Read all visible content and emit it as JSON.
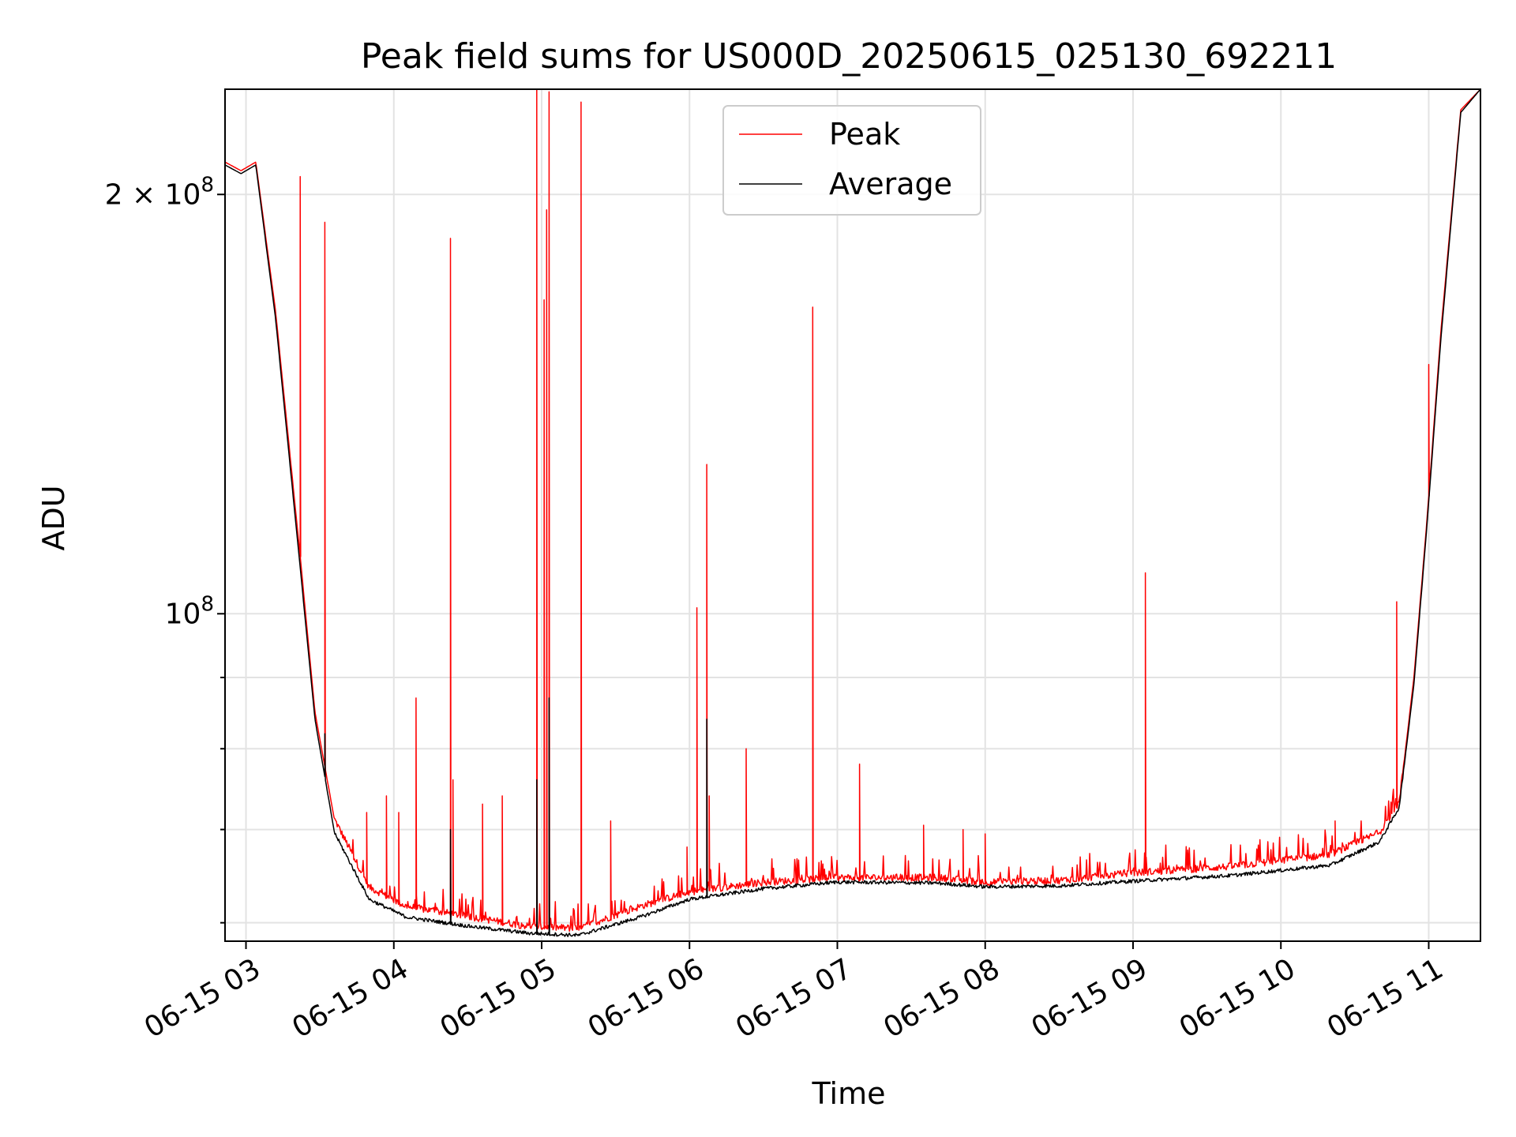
{
  "chart_data": {
    "type": "line",
    "title": "Peak field sums for US000D_20250615_025130_692211",
    "xlabel": "Time",
    "ylabel": "ADU",
    "yscale": "log",
    "grid": true,
    "legend_placement": "upper-center",
    "xlim": [
      "2025-06-15 02:51:30",
      "2025-06-15 11:21:00"
    ],
    "ylim": [
      58200000,
      238000000
    ],
    "x_ticks": [
      "06-15 03",
      "06-15 04",
      "06-15 05",
      "06-15 06",
      "06-15 07",
      "06-15 08",
      "06-15 09",
      "06-15 10",
      "06-15 11"
    ],
    "y_ticks_labeled": [
      "2 × 10^8",
      "10^8"
    ],
    "y_tick_values": [
      200000000,
      100000000,
      90000000,
      80000000,
      70000000,
      60000000
    ],
    "series": [
      {
        "name": "Peak",
        "color": "#ff0000",
        "baseline": [
          [
            "2025-06-15 02:51:30",
            211000000
          ],
          [
            "2025-06-15 02:58:00",
            208000000
          ],
          [
            "2025-06-15 03:04:00",
            211000000
          ],
          [
            "2025-06-15 03:12:00",
            165000000
          ],
          [
            "2025-06-15 03:22:00",
            110000000
          ],
          [
            "2025-06-15 03:28:00",
            85000000
          ],
          [
            "2025-06-15 03:36:00",
            71000000
          ],
          [
            "2025-06-15 03:50:00",
            63500000
          ],
          [
            "2025-06-15 04:05:00",
            61500000
          ],
          [
            "2025-06-15 04:30:00",
            60500000
          ],
          [
            "2025-06-15 04:55:00",
            59500000
          ],
          [
            "2025-06-15 05:15:00",
            59300000
          ],
          [
            "2025-06-15 05:40:00",
            61500000
          ],
          [
            "2025-06-15 06:00:00",
            63000000
          ],
          [
            "2025-06-15 06:30:00",
            64000000
          ],
          [
            "2025-06-15 07:00:00",
            64500000
          ],
          [
            "2025-06-15 07:40:00",
            64500000
          ],
          [
            "2025-06-15 08:00:00",
            64000000
          ],
          [
            "2025-06-15 08:30:00",
            64200000
          ],
          [
            "2025-06-15 09:00:00",
            65000000
          ],
          [
            "2025-06-15 09:40:00",
            65700000
          ],
          [
            "2025-06-15 10:20:00",
            67000000
          ],
          [
            "2025-06-15 10:40:00",
            69500000
          ],
          [
            "2025-06-15 10:48:00",
            73000000
          ],
          [
            "2025-06-15 10:54:00",
            90000000
          ],
          [
            "2025-06-15 10:59:00",
            115000000
          ],
          [
            "2025-06-15 11:05:00",
            160000000
          ],
          [
            "2025-06-15 11:13:00",
            230000000
          ],
          [
            "2025-06-15 11:21:00",
            238000000
          ]
        ],
        "spikes": [
          [
            "2025-06-15 03:22:00",
            206000000
          ],
          [
            "2025-06-15 03:32:00",
            191000000
          ],
          [
            "2025-06-15 03:49:00",
            72000000
          ],
          [
            "2025-06-15 03:57:00",
            74000000
          ],
          [
            "2025-06-15 04:02:00",
            72000000
          ],
          [
            "2025-06-15 04:09:00",
            87000000
          ],
          [
            "2025-06-15 04:23:00",
            186000000
          ],
          [
            "2025-06-15 04:24:00",
            76000000
          ],
          [
            "2025-06-15 04:36:00",
            73000000
          ],
          [
            "2025-06-15 04:44:00",
            74000000
          ],
          [
            "2025-06-15 04:58:00",
            238000000
          ],
          [
            "2025-06-15 05:01:00",
            168000000
          ],
          [
            "2025-06-15 05:02:00",
            195000000
          ],
          [
            "2025-06-15 05:03:00",
            237000000
          ],
          [
            "2025-06-15 05:16:00",
            233000000
          ],
          [
            "2025-06-15 05:28:00",
            71000000
          ],
          [
            "2025-06-15 05:59:00",
            68000000
          ],
          [
            "2025-06-15 06:03:00",
            101000000
          ],
          [
            "2025-06-15 06:07:00",
            128000000
          ],
          [
            "2025-06-15 06:08:00",
            74000000
          ],
          [
            "2025-06-15 06:23:00",
            80000000
          ],
          [
            "2025-06-15 06:50:00",
            166000000
          ],
          [
            "2025-06-15 07:09:00",
            78000000
          ],
          [
            "2025-06-15 07:35:00",
            70500000
          ],
          [
            "2025-06-15 07:51:00",
            70000000
          ],
          [
            "2025-06-15 08:00:00",
            69500000
          ],
          [
            "2025-06-15 09:05:00",
            107000000
          ],
          [
            "2025-06-15 10:22:00",
            71000000
          ],
          [
            "2025-06-15 10:47:00",
            102000000
          ],
          [
            "2025-06-15 11:00:00",
            151000000
          ]
        ]
      },
      {
        "name": "Average",
        "color": "#000000",
        "baseline": [
          [
            "2025-06-15 02:51:30",
            210000000
          ],
          [
            "2025-06-15 02:58:00",
            207000000
          ],
          [
            "2025-06-15 03:04:00",
            210000000
          ],
          [
            "2025-06-15 03:12:00",
            163000000
          ],
          [
            "2025-06-15 03:22:00",
            108000000
          ],
          [
            "2025-06-15 03:28:00",
            84000000
          ],
          [
            "2025-06-15 03:36:00",
            69500000
          ],
          [
            "2025-06-15 03:50:00",
            62300000
          ],
          [
            "2025-06-15 04:05:00",
            60500000
          ],
          [
            "2025-06-15 04:30:00",
            59600000
          ],
          [
            "2025-06-15 04:55:00",
            58900000
          ],
          [
            "2025-06-15 05:15:00",
            58700000
          ],
          [
            "2025-06-15 05:40:00",
            60500000
          ],
          [
            "2025-06-15 06:00:00",
            62300000
          ],
          [
            "2025-06-15 06:30:00",
            63400000
          ],
          [
            "2025-06-15 07:00:00",
            64100000
          ],
          [
            "2025-06-15 07:40:00",
            64000000
          ],
          [
            "2025-06-15 08:00:00",
            63600000
          ],
          [
            "2025-06-15 08:30:00",
            63700000
          ],
          [
            "2025-06-15 09:00:00",
            64200000
          ],
          [
            "2025-06-15 09:40:00",
            64800000
          ],
          [
            "2025-06-15 10:20:00",
            65900000
          ],
          [
            "2025-06-15 10:40:00",
            68500000
          ],
          [
            "2025-06-15 10:48:00",
            72500000
          ],
          [
            "2025-06-15 10:54:00",
            89000000
          ],
          [
            "2025-06-15 10:59:00",
            114000000
          ],
          [
            "2025-06-15 11:05:00",
            158000000
          ],
          [
            "2025-06-15 11:13:00",
            229000000
          ],
          [
            "2025-06-15 11:21:00",
            238000000
          ]
        ],
        "spikes": [
          [
            "2025-06-15 03:32:00",
            82000000
          ],
          [
            "2025-06-15 04:23:00",
            70000000
          ],
          [
            "2025-06-15 04:58:00",
            76000000
          ],
          [
            "2025-06-15 05:03:00",
            87000000
          ],
          [
            "2025-06-15 06:07:00",
            84000000
          ]
        ]
      }
    ]
  }
}
